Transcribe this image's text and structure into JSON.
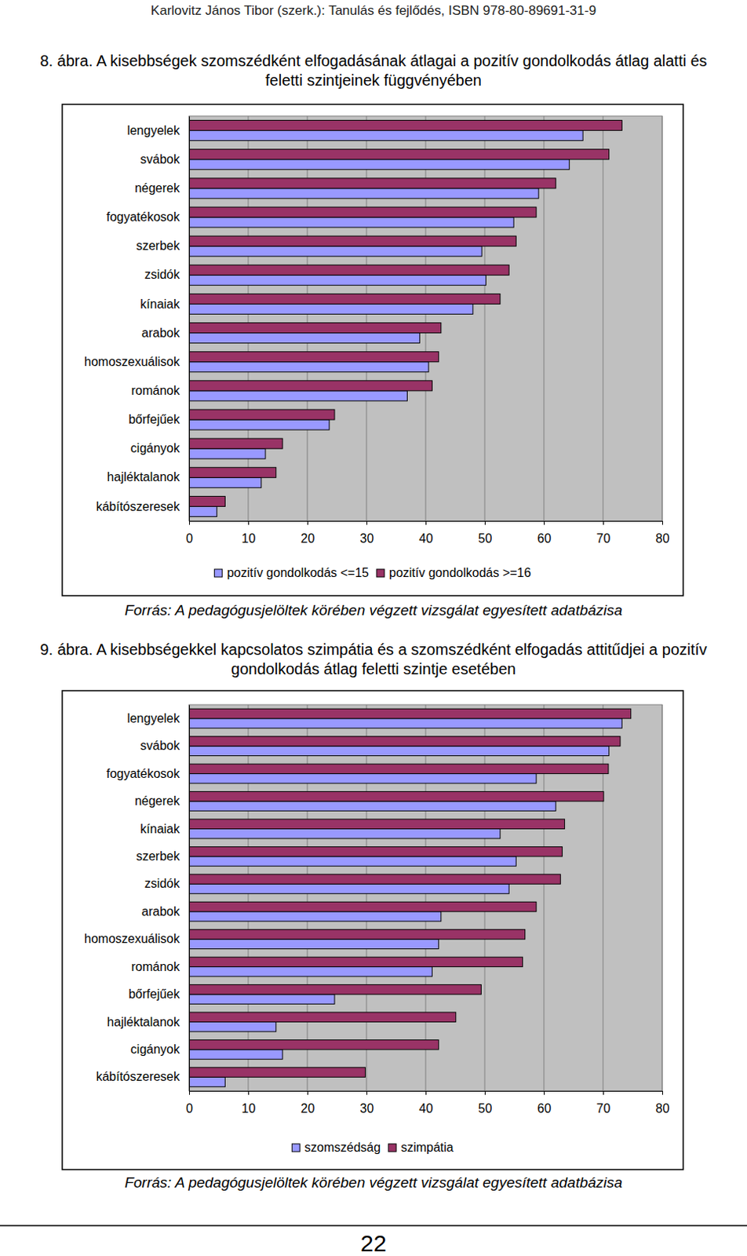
{
  "header": "Karlovitz János Tibor (szerk.): Tanulás és fejlődés, ISBN 978-80-89691-31-9",
  "page_number": 22,
  "chart_data": [
    {
      "type": "bar",
      "orientation": "horizontal",
      "title": "8. ábra. A kisebbségek szomszédként elfogadásának átlagai a pozitív gondolkodás átlag alatti és feletti szintjeinek függvényében",
      "categories": [
        "lengyelek",
        "svábok",
        "négerek",
        "fogyatékosok",
        "szerbek",
        "zsidók",
        "kínaiak",
        "arabok",
        "homoszexuálisok",
        "románok",
        "bőrfejűek",
        "cigányok",
        "hajléktalanok",
        "kábítószeresek"
      ],
      "series": [
        {
          "name": "pozitív gondolkodás <=15",
          "color": "#9999ff",
          "values": [
            66.6,
            64.3,
            59.1,
            54.9,
            49.5,
            50.2,
            48.0,
            39.0,
            40.5,
            36.9,
            23.7,
            12.9,
            12.2,
            4.7
          ]
        },
        {
          "name": "pozitív gondolkodás >=16",
          "color": "#993366",
          "values": [
            73.2,
            71.0,
            62.0,
            58.7,
            55.3,
            54.1,
            52.6,
            42.6,
            42.2,
            41.1,
            24.6,
            15.8,
            14.7,
            6.1
          ]
        }
      ],
      "xlim": [
        0,
        80
      ],
      "xticks": [
        0,
        10,
        20,
        30,
        40,
        50,
        60,
        70,
        80
      ],
      "grid": true,
      "legend": "bottom",
      "annotations": [
        "Forrás: A pedagógusjelöltek körében végzett vizsgálat egyesített adatbázisa"
      ]
    },
    {
      "type": "bar",
      "orientation": "horizontal",
      "title": "9. ábra. A kisebbségekkel kapcsolatos szimpátia és a szomszédként elfogadás attitűdjei a pozitív gondolkodás átlag feletti szintje esetében",
      "categories": [
        "lengyelek",
        "svábok",
        "fogyatékosok",
        "négerek",
        "kínaiak",
        "szerbek",
        "zsidók",
        "arabok",
        "homoszexuálisok",
        "románok",
        "bőrfejűek",
        "hajléktalanok",
        "cigányok",
        "kábítószeresek"
      ],
      "series": [
        {
          "name": "szomszédság",
          "color": "#9999ff",
          "values": [
            73.2,
            71.0,
            58.7,
            62.0,
            52.6,
            55.3,
            54.1,
            42.6,
            42.2,
            41.1,
            24.6,
            14.7,
            15.8,
            6.1
          ]
        },
        {
          "name": "szimpátia",
          "color": "#993366",
          "values": [
            74.7,
            72.9,
            70.9,
            70.1,
            63.5,
            63.1,
            62.8,
            58.7,
            56.8,
            56.4,
            49.4,
            45.1,
            42.2,
            29.8
          ]
        }
      ],
      "xlim": [
        0,
        80
      ],
      "xticks": [
        0,
        10,
        20,
        30,
        40,
        50,
        60,
        70,
        80
      ],
      "grid": true,
      "legend": "bottom",
      "annotations": [
        "Forrás: A pedagógusjelöltek körében végzett vizsgálat egyesített adatbázisa"
      ]
    }
  ]
}
